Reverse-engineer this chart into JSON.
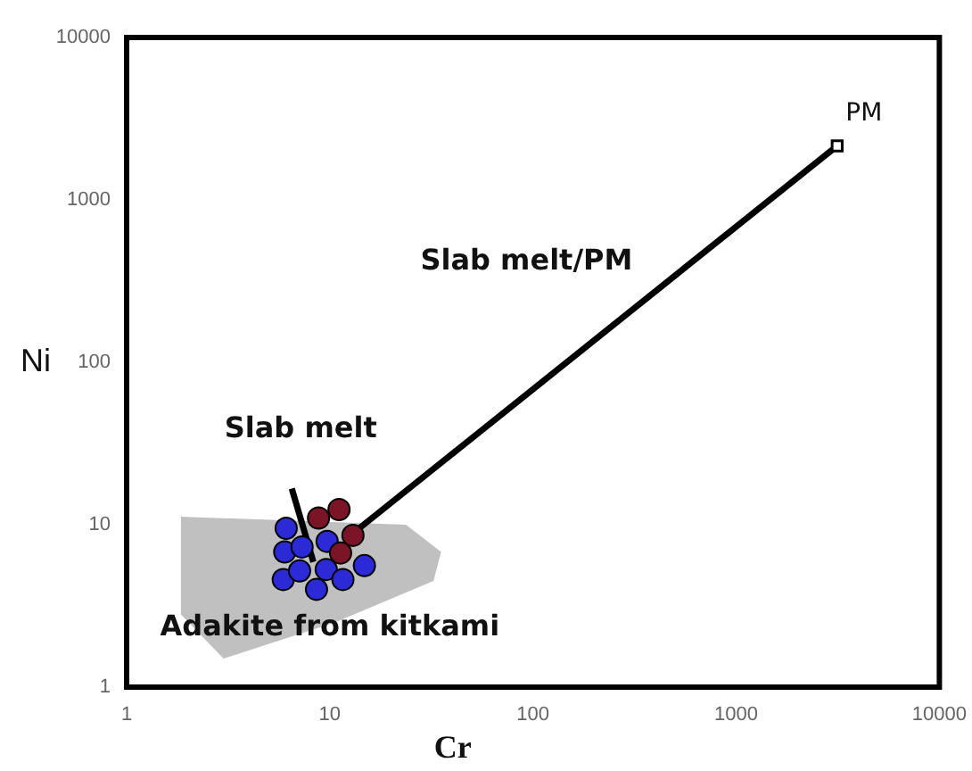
{
  "chart_data": {
    "type": "scatter",
    "xlabel": "Cr",
    "ylabel": "Ni",
    "log": "xy",
    "grid": false,
    "legend": false,
    "xlim": [
      1,
      10000
    ],
    "ylim": [
      1,
      10000
    ],
    "xticks": [
      1,
      10,
      100,
      1000,
      10000
    ],
    "yticks": [
      1,
      10,
      100,
      1000,
      10000
    ],
    "series": [
      {
        "type": "area",
        "color": "#c0c0c0",
        "x": [
          1.85,
          23.7,
          35.3,
          32.4,
          10.6,
          3.0,
          1.85,
          1.85
        ],
        "values": [
          11.2,
          10,
          6.8,
          4.5,
          2.5,
          1.5,
          2.8,
          11.2
        ],
        "marker": "none"
      },
      {
        "type": "line",
        "color": "#000000",
        "x": [
          13.8,
          3140
        ],
        "values": [
          9.4,
          2150
        ],
        "marker": "none"
      },
      {
        "type": "line",
        "color": "#000000",
        "x": [
          6.5,
          8.3
        ],
        "values": [
          16.7,
          5.9
        ],
        "marker": "none"
      },
      {
        "type": "scatter",
        "color": "#000000",
        "x": [
          3140
        ],
        "values": [
          2150
        ],
        "marker": "square"
      },
      {
        "type": "scatter",
        "color": "#2a2ad6",
        "x": [
          6.1,
          6.0,
          7.3,
          9.7,
          5.9,
          7.1,
          9.6,
          8.6,
          11.6,
          14.8
        ],
        "values": [
          9.5,
          6.8,
          7.3,
          7.9,
          4.6,
          5.2,
          5.3,
          4.0,
          4.6,
          5.6
        ],
        "marker": "circle"
      },
      {
        "type": "scatter",
        "color": "#7a1426",
        "x": [
          8.8,
          11.1,
          13.0,
          11.3
        ],
        "values": [
          11,
          12.4,
          8.6,
          6.7
        ],
        "marker": "circle"
      }
    ],
    "annotations": [
      "Slab melt/PM",
      {
        "text": "Slab melt",
        "x": 6.5,
        "y": 16.7
      },
      {
        "text": "Adakite from kitkami",
        "x": 10,
        "y": 2.3
      },
      {
        "text": "PM",
        "x": 3140,
        "y": 2150
      }
    ]
  }
}
